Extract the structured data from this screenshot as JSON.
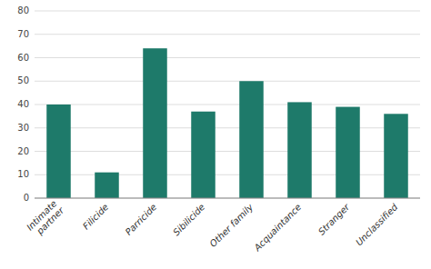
{
  "chart_data": {
    "type": "bar",
    "categories": [
      "Intimate\npartner",
      "Filicide",
      "Parricide",
      "Sibilicide",
      "Other family",
      "Acquaintance",
      "Stranger",
      "Unclassified"
    ],
    "values": [
      40,
      11,
      64,
      37,
      50,
      41,
      39,
      36
    ],
    "color": "#1e7a6a",
    "ylim": [
      0,
      80
    ],
    "yticks": [
      0,
      10,
      20,
      30,
      40,
      50,
      60,
      70,
      80
    ],
    "grid": true
  }
}
